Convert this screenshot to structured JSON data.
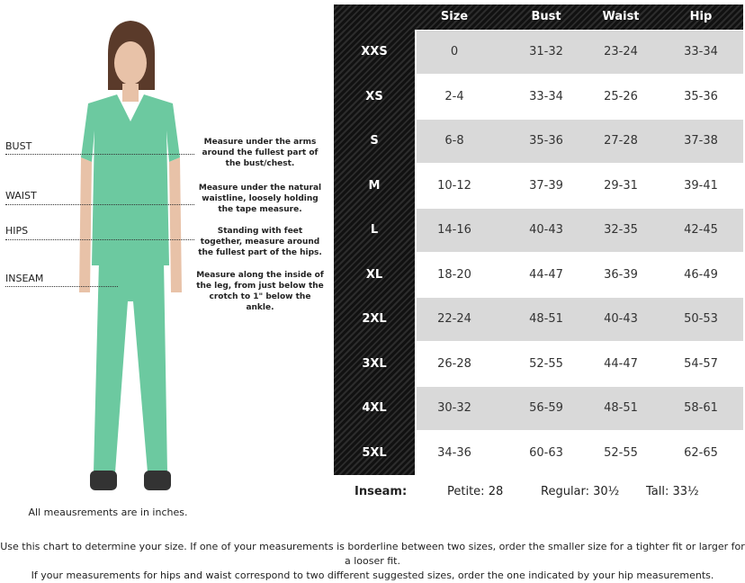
{
  "measure_guide": [
    {
      "label": "BUST",
      "description": "Measure under the arms around the fullest part of the bust/chest."
    },
    {
      "label": "WAIST",
      "description": "Measure under the natural waistline, loosely holding the tape measure."
    },
    {
      "label": "HIPS",
      "description": "Standing with feet together, measure around the fullest part of the hips."
    },
    {
      "label": "INSEAM",
      "description": "Measure along the inside of the leg, from just below the crotch to 1\" below the ankle."
    }
  ],
  "caption": "All meausrements are in inches.",
  "table": {
    "headers": [
      "Size",
      "Bust",
      "Waist",
      "Hip"
    ],
    "rows": [
      {
        "label": "XXS",
        "size": "0",
        "bust": "31-32",
        "waist": "23-24",
        "hip": "33-34"
      },
      {
        "label": "XS",
        "size": "2-4",
        "bust": "33-34",
        "waist": "25-26",
        "hip": "35-36"
      },
      {
        "label": "S",
        "size": "6-8",
        "bust": "35-36",
        "waist": "27-28",
        "hip": "37-38"
      },
      {
        "label": "M",
        "size": "10-12",
        "bust": "37-39",
        "waist": "29-31",
        "hip": "39-41"
      },
      {
        "label": "L",
        "size": "14-16",
        "bust": "40-43",
        "waist": "32-35",
        "hip": "42-45"
      },
      {
        "label": "XL",
        "size": "18-20",
        "bust": "44-47",
        "waist": "36-39",
        "hip": "46-49"
      },
      {
        "label": "2XL",
        "size": "22-24",
        "bust": "48-51",
        "waist": "40-43",
        "hip": "50-53"
      },
      {
        "label": "3XL",
        "size": "26-28",
        "bust": "52-55",
        "waist": "44-47",
        "hip": "54-57"
      },
      {
        "label": "4XL",
        "size": "30-32",
        "bust": "56-59",
        "waist": "48-51",
        "hip": "58-61"
      },
      {
        "label": "5XL",
        "size": "34-36",
        "bust": "60-63",
        "waist": "52-55",
        "hip": "62-65"
      }
    ],
    "inseam": {
      "label": "Inseam:",
      "petite": "Petite: 28",
      "regular": "Regular: 30½",
      "tall": "Tall: 33½"
    }
  },
  "note": [
    "Use this chart to determine your size. If one of your measurements is borderline between two sizes, order the smaller size for a tighter fit or larger for a looser fit.",
    "If your measurements for hips and waist correspond to two different suggested sizes, order the one indicated by your hip measurements."
  ],
  "colors": {
    "header": "#1a1a1a",
    "row_shaded": "#d9d9d9",
    "row_plain": "#ffffff",
    "scrubs": "#6cc9a0"
  }
}
